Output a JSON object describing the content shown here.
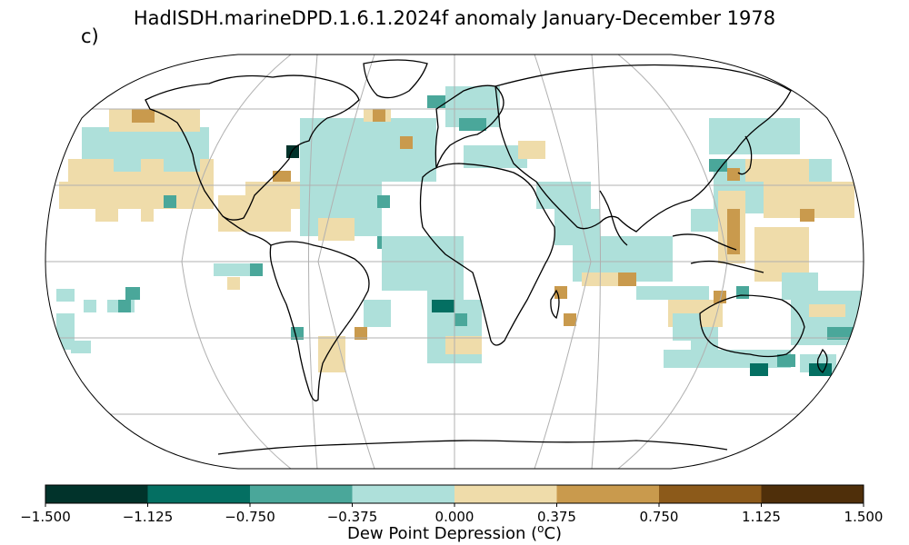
{
  "title": "HadISDH.marineDPD.1.6.1.2024f anomaly January-December 1978",
  "panel_label": "c)",
  "colorbar": {
    "label_prefix": "Dew Point Depression (",
    "label_sup": "o",
    "label_suffix": "C)",
    "ticks": [
      "−1.500",
      "−1.125",
      "−0.750",
      "−0.375",
      "0.000",
      "0.375",
      "0.750",
      "1.125",
      "1.500"
    ],
    "colors": [
      "#01332b",
      "#046f62",
      "#4aa79a",
      "#aee0da",
      "#efdcaa",
      "#c99a4d",
      "#8c5a1a",
      "#4f2f0a"
    ]
  },
  "colors": {
    "land_outline": "#000000",
    "graticule": "#b0b0b0",
    "frame": "#000000"
  }
}
